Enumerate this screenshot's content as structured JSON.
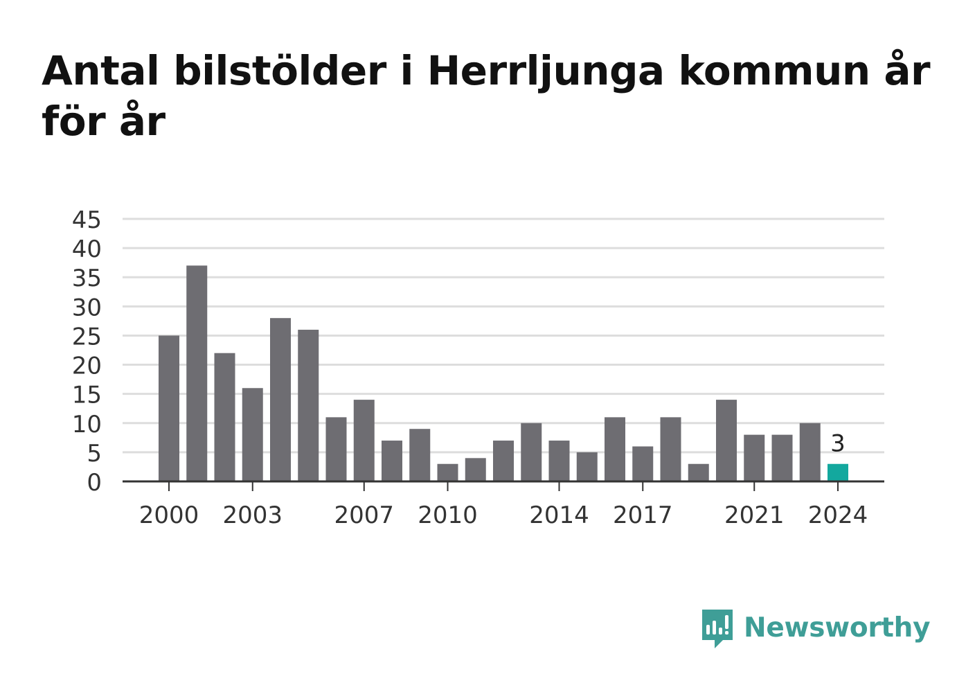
{
  "title": "Antal bilstölder i Herrljunga kommun år för år",
  "brand": {
    "name": "Newsworthy",
    "icon": "bar-chart-speech-bubble-icon",
    "color": "#3f9e97"
  },
  "colors": {
    "bar": "#6e6d72",
    "highlight": "#13a89e",
    "grid": "#dddddd",
    "axis": "#333333",
    "text": "#333333"
  },
  "chart_data": {
    "type": "bar",
    "title": "Antal bilstölder i Herrljunga kommun år för år",
    "xlabel": "",
    "ylabel": "",
    "categories": [
      2000,
      2001,
      2002,
      2003,
      2004,
      2005,
      2006,
      2007,
      2008,
      2009,
      2010,
      2011,
      2012,
      2013,
      2014,
      2015,
      2016,
      2017,
      2018,
      2019,
      2020,
      2021,
      2022,
      2023,
      2024
    ],
    "values": [
      25,
      37,
      22,
      16,
      28,
      26,
      11,
      14,
      7,
      9,
      3,
      4,
      7,
      10,
      7,
      5,
      11,
      6,
      11,
      3,
      14,
      8,
      8,
      10,
      3
    ],
    "ylim": [
      0,
      45
    ],
    "yticks": [
      0,
      5,
      10,
      15,
      20,
      25,
      30,
      35,
      40,
      45
    ],
    "xticks": [
      2000,
      2003,
      2007,
      2010,
      2014,
      2017,
      2021,
      2024
    ],
    "highlight_category": 2024,
    "data_labels": [
      {
        "category": 2024,
        "label": "3"
      }
    ],
    "grid": true,
    "legend": "none"
  }
}
